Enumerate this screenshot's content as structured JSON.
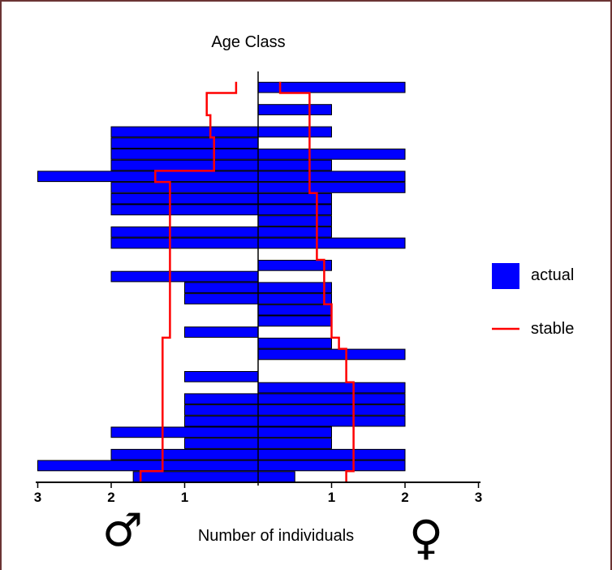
{
  "chart_data": {
    "type": "bar",
    "title": "Age Class",
    "xlabel": "Number of individuals",
    "xlim": [
      -3,
      3
    ],
    "x_ticks": [
      -3,
      -2,
      -1,
      1,
      2,
      3
    ],
    "x_tick_labels": [
      "3",
      "2",
      "1",
      "1",
      "2",
      "3"
    ],
    "sex_symbols": {
      "male": "♂",
      "female": "♀"
    },
    "legend": {
      "placement": "right",
      "items": [
        {
          "label": "actual",
          "kind": "bar"
        },
        {
          "label": "stable",
          "kind": "line"
        }
      ]
    },
    "colors": {
      "actual": "#0000ff",
      "stable": "#ff0000",
      "bar_edge": "#000000"
    },
    "rows": 36,
    "series": [
      {
        "name": "actual",
        "male": [
          1.7,
          3,
          2,
          1,
          2,
          1,
          1,
          1,
          0,
          1,
          0,
          0,
          0,
          1,
          0,
          0,
          1,
          1,
          2,
          0,
          0,
          2,
          2,
          0,
          2,
          2,
          2,
          3,
          2,
          2,
          2,
          2,
          0,
          0,
          0,
          0
        ],
        "female": [
          0.5,
          2,
          2,
          1,
          1,
          2,
          2,
          2,
          2,
          0,
          0,
          2,
          1,
          0,
          1,
          1,
          1,
          1,
          0,
          1,
          0,
          2,
          1,
          1,
          1,
          1,
          2,
          2,
          1,
          2,
          0,
          1,
          0,
          1,
          0,
          2
        ]
      },
      {
        "name": "stable",
        "male": [
          1.6,
          1.3,
          1.3,
          1.3,
          1.3,
          1.3,
          1.3,
          1.3,
          1.3,
          1.3,
          1.3,
          1.3,
          1.3,
          1.2,
          1.2,
          1.2,
          1.2,
          1.2,
          1.2,
          1.2,
          1.2,
          1.2,
          1.2,
          1.2,
          1.2,
          1.2,
          1.2,
          1.4,
          0.6,
          0.6,
          0.6,
          0.65,
          0.65,
          0.7,
          0.7,
          0.3
        ],
        "female": [
          1.2,
          1.3,
          1.3,
          1.3,
          1.3,
          1.3,
          1.3,
          1.3,
          1.3,
          1.2,
          1.2,
          1.2,
          1.1,
          1.0,
          1.0,
          1.0,
          0.9,
          0.9,
          0.9,
          0.9,
          0.8,
          0.8,
          0.8,
          0.8,
          0.8,
          0.8,
          0.7,
          0.7,
          0.7,
          0.7,
          0.7,
          0.7,
          0.7,
          0.7,
          0.7,
          0.3
        ]
      }
    ]
  }
}
